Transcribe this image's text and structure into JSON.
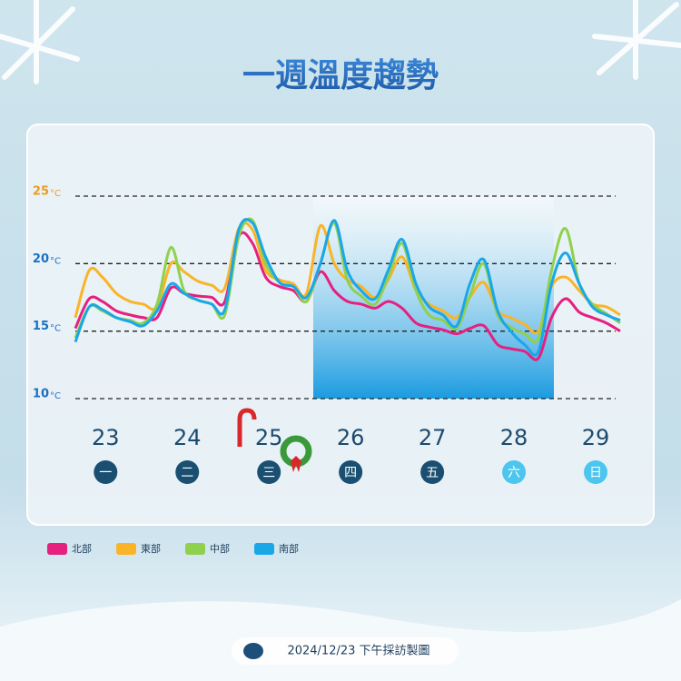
{
  "chart_data": {
    "type": "line",
    "title": "一週溫度趨勢",
    "unit": "°C",
    "x": [
      22.63,
      22.8,
      22.96,
      23.13,
      23.3,
      23.46,
      23.63,
      23.8,
      23.96,
      24.13,
      24.3,
      24.46,
      24.63,
      24.8,
      24.96,
      25.13,
      25.3,
      25.46,
      25.63,
      25.8,
      25.96,
      26.13,
      26.3,
      26.46,
      26.63,
      26.8,
      26.96,
      27.13,
      27.3,
      27.46,
      27.63,
      27.8,
      27.96,
      28.13,
      28.3,
      28.46,
      28.63,
      28.8,
      28.96,
      29.13,
      29.3
    ],
    "xlim": [
      22.63,
      29.3
    ],
    "xticks": [
      23,
      24,
      25,
      26,
      27,
      28,
      29
    ],
    "weekdays": [
      "一",
      "二",
      "三",
      "四",
      "五",
      "六",
      "日"
    ],
    "ylim": [
      10,
      25
    ],
    "yticks": [
      10,
      15,
      20,
      25
    ],
    "grid": true,
    "series": [
      {
        "name": "北部",
        "color": "#e6207e",
        "values": [
          15.2,
          17.4,
          17.2,
          16.5,
          16.2,
          16.0,
          16.0,
          18.2,
          17.8,
          17.6,
          17.5,
          17.2,
          22.0,
          21.5,
          19.0,
          18.3,
          18.0,
          17.2,
          19.4,
          18.0,
          17.2,
          17.0,
          16.7,
          17.2,
          16.7,
          15.6,
          15.3,
          15.1,
          14.8,
          15.2,
          15.4,
          14.0,
          13.7,
          13.5,
          13.0,
          16.0,
          17.4,
          16.4,
          16.0,
          15.6,
          15.0
        ]
      },
      {
        "name": "東部",
        "color": "#f9b428",
        "values": [
          16.0,
          19.5,
          19.0,
          17.8,
          17.2,
          17.0,
          16.8,
          20.0,
          19.4,
          18.7,
          18.4,
          18.2,
          22.6,
          22.5,
          19.5,
          18.8,
          18.5,
          17.8,
          22.8,
          20.0,
          18.8,
          18.3,
          17.5,
          18.8,
          20.5,
          18.0,
          17.0,
          16.5,
          16.0,
          17.5,
          18.6,
          16.5,
          16.0,
          15.5,
          15.0,
          18.3,
          19.0,
          18.0,
          17.0,
          16.8,
          16.2
        ]
      },
      {
        "name": "中部",
        "color": "#8fd14f",
        "values": [
          14.5,
          16.8,
          16.5,
          16.0,
          15.8,
          15.6,
          17.0,
          21.2,
          18.0,
          17.3,
          17.0,
          16.2,
          22.0,
          23.2,
          20.0,
          18.6,
          18.3,
          17.2,
          20.0,
          23.0,
          18.8,
          17.6,
          17.0,
          19.0,
          21.5,
          18.0,
          16.2,
          15.8,
          15.2,
          17.6,
          20.0,
          16.2,
          15.3,
          14.8,
          14.5,
          19.5,
          22.6,
          18.5,
          17.0,
          16.3,
          15.6
        ]
      },
      {
        "name": "南部",
        "color": "#1aa7e8",
        "values": [
          14.2,
          16.8,
          16.6,
          16.0,
          15.7,
          15.4,
          16.5,
          18.5,
          17.8,
          17.3,
          17.0,
          16.6,
          22.5,
          23.0,
          20.5,
          18.6,
          18.3,
          17.5,
          20.0,
          23.2,
          19.5,
          18.0,
          17.4,
          19.5,
          21.8,
          18.5,
          16.8,
          16.2,
          15.4,
          18.5,
          20.3,
          16.5,
          15.0,
          14.0,
          13.5,
          18.5,
          20.8,
          18.5,
          16.8,
          16.2,
          15.8
        ]
      }
    ]
  },
  "footer": "2024/12/23 下午採訪製圖"
}
